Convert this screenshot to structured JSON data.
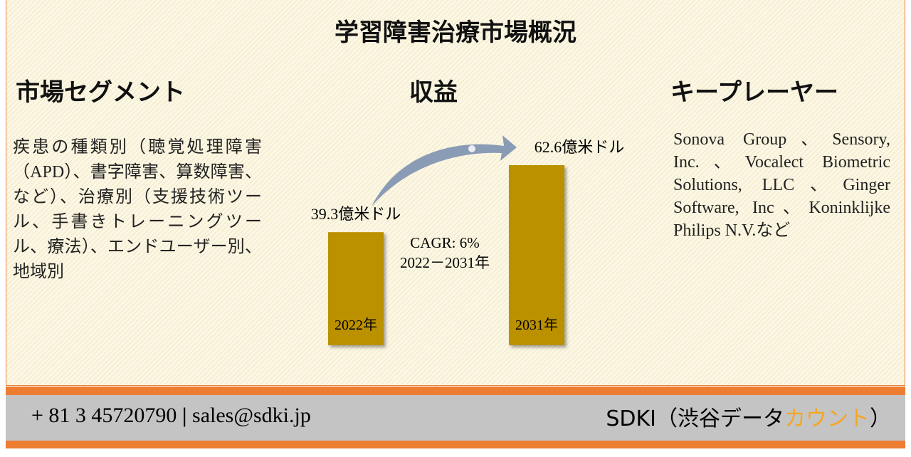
{
  "title": "学習障害治療市場概況",
  "segments": {
    "heading": "市場セグメント",
    "text": "疾患の種類別（聴覚処理障害（APD）、書字障害、算数障害、など）、治療別（支援技術ツール、手書きトレーニングツール、療法）、エンドユーザー別、地域別"
  },
  "revenue": {
    "heading": "収益",
    "type": "bar",
    "categories": [
      "2022年",
      "2031年"
    ],
    "values": [
      39.3,
      62.6
    ],
    "value_labels": [
      "39.3億米ドル",
      "62.6億米ドル"
    ],
    "color": "#bb9103",
    "cagr": "CAGR: 6%",
    "period": "2022－2031年"
  },
  "players": {
    "heading": "キープレーヤー",
    "text": "Sonova Group、Sensory, Inc.、Vocalect Biometric Solutions, LLC、Ginger Software, Inc、Koninklijke Philips N.V.など"
  },
  "footer": {
    "phone": "+ 81 3 45720790",
    "separator": "|",
    "email": "sales@sdki.jp",
    "brand": "SDKI（渋谷データ",
    "brand_highlight": "カウント",
    "brand_end": "）"
  }
}
